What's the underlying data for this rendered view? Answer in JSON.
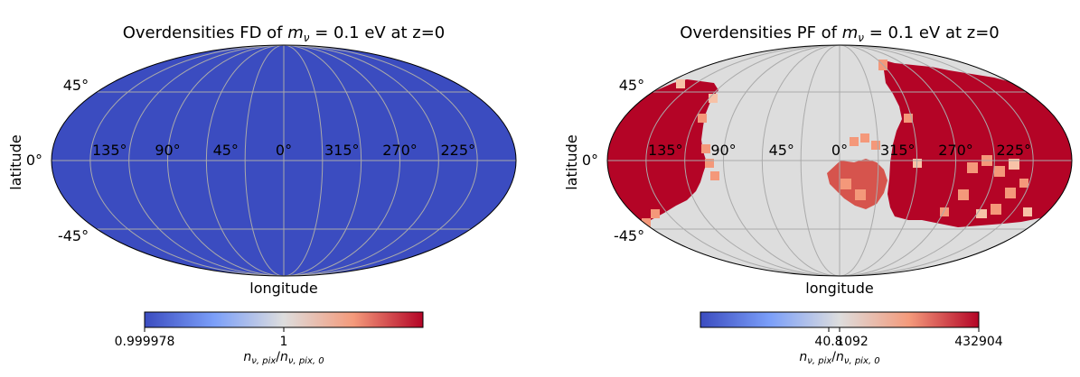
{
  "chart_data": [
    {
      "type": "heatmap",
      "projection": "mollweide",
      "title": "Overdensities FD of mν = 0.1 eV at z=0",
      "title_parts": {
        "prefix": "Overdensities FD of ",
        "m": "m",
        "sub": "ν",
        "eq": " = 0.1 eV at z=0"
      },
      "xlabel": "longitude",
      "ylabel": "latitude",
      "lon_ticks": [
        "135°",
        "90°",
        "45°",
        "0°",
        "315°",
        "270°",
        "225°"
      ],
      "lat_ticks": [
        "45°",
        "0°",
        "-45°"
      ],
      "grid": true,
      "map_color": "#3b4cc0",
      "colorbar": {
        "colormap": "coolwarm",
        "tick_labels": [
          "0.999978",
          "1"
        ],
        "label": "nν,pix/nν,pix,0",
        "label_parts": {
          "n": "n",
          "sub1": "ν, pix",
          "slash": "/",
          "n2": "n",
          "sub2": "ν, pix, 0"
        }
      }
    },
    {
      "type": "heatmap",
      "projection": "mollweide",
      "title": "Overdensities PF of mν = 0.1 eV at z=0",
      "title_parts": {
        "prefix": "Overdensities PF of ",
        "m": "m",
        "sub": "ν",
        "eq": " = 0.1 eV at z=0"
      },
      "xlabel": "longitude",
      "ylabel": "latitude",
      "lon_ticks": [
        "135°",
        "90°",
        "45°",
        "0°",
        "315°",
        "270°",
        "225°"
      ],
      "lat_ticks": [
        "45°",
        "0°",
        "-45°"
      ],
      "grid": true,
      "background_color": "#dddddd",
      "high_color": "#b40426",
      "mid_color": "#f4987a",
      "colorbar": {
        "colormap": "coolwarm",
        "tick_labels": [
          "40.8",
          "1092",
          "432904"
        ],
        "label": "nν,pix/nν,pix,0",
        "label_parts": {
          "n": "n",
          "sub1": "ν, pix",
          "slash": "/",
          "n2": "n",
          "sub2": "ν, pix, 0"
        }
      }
    }
  ]
}
